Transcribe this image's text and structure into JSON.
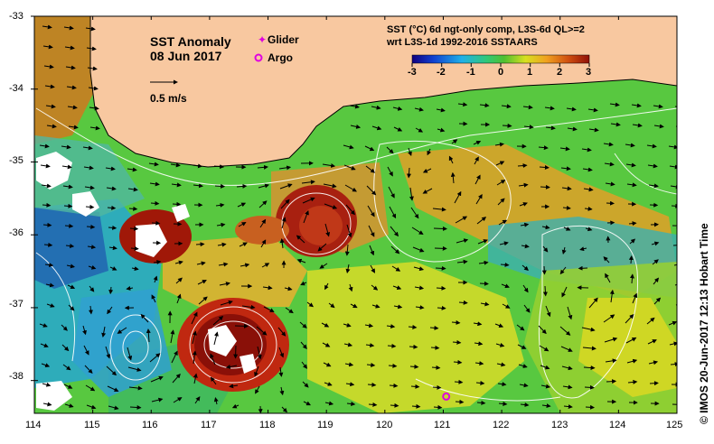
{
  "map": {
    "title": "SST Anomaly",
    "date": "08 Jun 2017",
    "scale_arrow_label": "0.5 m/s",
    "legend": {
      "glider_label": "Glider",
      "argo_label": "Argo",
      "glider_color": "#e000e0",
      "argo_color": "#e000e0"
    },
    "colorbar": {
      "title_line1": "SST (°C) 6d ngt-only comp, L3S-6d QL>=2",
      "title_line2": "wrt L3S-1d 1992-2016 SSTAARS",
      "ticks": [
        "-3",
        "-2",
        "-1",
        "0",
        "1",
        "2",
        "3"
      ],
      "range": [
        -3,
        3
      ]
    },
    "credit": "© IMOS 20-Jun-2017 12:13 Hobart Time",
    "x_axis": {
      "ticks": [
        "114",
        "115",
        "116",
        "117",
        "118",
        "119",
        "120",
        "121",
        "122",
        "123",
        "124",
        "125"
      ],
      "range": [
        114,
        125
      ]
    },
    "y_axis": {
      "ticks": [
        "-33",
        "-34",
        "-35",
        "-36",
        "-37",
        "-38"
      ],
      "range": [
        -38.5,
        -33
      ]
    },
    "colors": {
      "land": "#f8c8a0",
      "warm_anomaly": "#a01808",
      "cool_anomaly": "#1898d0",
      "neutral": "#40c040",
      "contours": "#ffffff",
      "missing_data": "#ffffff"
    },
    "argo_float": {
      "lon": 121.05,
      "lat": -38.22
    }
  }
}
